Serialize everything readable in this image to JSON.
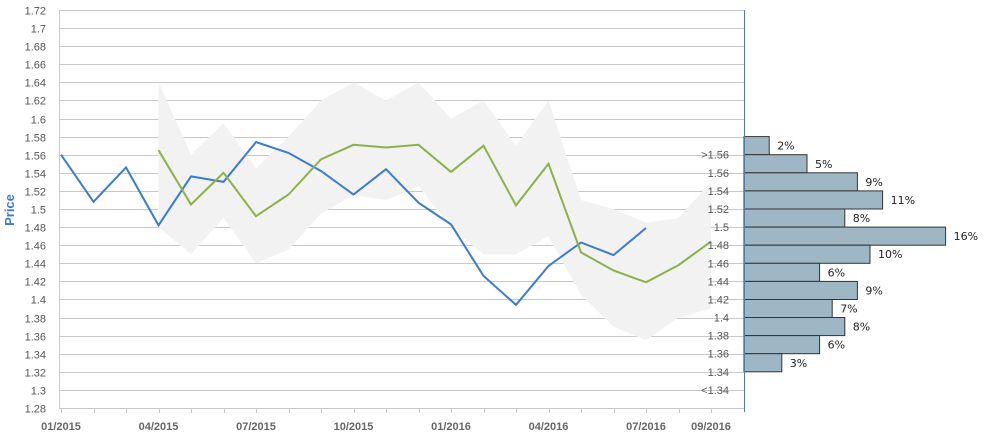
{
  "chart_data": {
    "type": "line",
    "ylabel": "Price",
    "ylim": [
      1.28,
      1.72
    ],
    "yticks": [
      "1.28",
      "1.3",
      "1.32",
      "1.34",
      "1.36",
      "1.38",
      "1.4",
      "1.42",
      "1.44",
      "1.46",
      "1.48",
      "1.5",
      "1.52",
      "1.54",
      "1.56",
      "1.58",
      "1.6",
      "1.62",
      "1.64",
      "1.66",
      "1.68",
      "1.7",
      "1.72"
    ],
    "xlim": [
      "2015-01",
      "2016-09"
    ],
    "xticks": [
      "01/2015",
      "04/2015",
      "07/2015",
      "10/2015",
      "01/2016",
      "04/2016",
      "07/2016",
      "09/2016"
    ],
    "grid": true,
    "colors": {
      "actual": "#3a7bd5",
      "forecast": "#8db04a",
      "band": "#f2f2f2",
      "hist_fill": "#9fb6c4",
      "hist_stroke": "#333333"
    },
    "band": {
      "x": [
        "2015-04",
        "2015-05",
        "2015-06",
        "2015-07",
        "2015-08",
        "2015-09",
        "2015-10",
        "2015-11",
        "2015-12",
        "2016-01",
        "2016-02",
        "2016-03",
        "2016-04",
        "2016-05",
        "2016-06",
        "2016-07",
        "2016-08",
        "2016-09"
      ],
      "upper": [
        1.64,
        1.56,
        1.595,
        1.545,
        1.58,
        1.62,
        1.64,
        1.62,
        1.64,
        1.6,
        1.62,
        1.57,
        1.62,
        1.51,
        1.5,
        1.485,
        1.49,
        1.53
      ],
      "lower": [
        1.48,
        1.45,
        1.49,
        1.44,
        1.455,
        1.495,
        1.515,
        1.51,
        1.525,
        1.48,
        1.45,
        1.45,
        1.47,
        1.405,
        1.37,
        1.355,
        1.38,
        1.39
      ]
    },
    "series": [
      {
        "x": [
          "2015-01",
          "2015-02",
          "2015-03",
          "2015-04",
          "2015-05",
          "2015-06",
          "2015-07",
          "2015-08",
          "2015-09",
          "2015-10",
          "2015-11",
          "2015-12",
          "2016-01",
          "2016-02",
          "2016-03",
          "2016-04",
          "2016-05",
          "2016-06",
          "2016-07"
        ],
        "y": [
          1.56,
          1.508,
          1.546,
          1.482,
          1.536,
          1.53,
          1.574,
          1.562,
          1.542,
          1.516,
          1.544,
          1.507,
          1.483,
          1.426,
          1.394,
          1.437,
          1.463,
          1.449,
          1.479
        ]
      },
      {
        "x": [
          "2015-04",
          "2015-05",
          "2015-06",
          "2015-07",
          "2015-08",
          "2015-09",
          "2015-10",
          "2015-11",
          "2015-12",
          "2016-01",
          "2016-02",
          "2016-03",
          "2016-04",
          "2016-05",
          "2016-06",
          "2016-07",
          "2016-08",
          "2016-09"
        ],
        "y": [
          1.565,
          1.505,
          1.54,
          1.492,
          1.516,
          1.555,
          1.571,
          1.568,
          1.571,
          1.541,
          1.57,
          1.504,
          1.55,
          1.452,
          1.432,
          1.419,
          1.438,
          1.464
        ]
      }
    ],
    "histogram": {
      "bins": [
        {
          "label": ">1.56",
          "percent": 2
        },
        {
          "label": "1.56",
          "percent": 5
        },
        {
          "label": "1.54",
          "percent": 9
        },
        {
          "label": "1.52",
          "percent": 11
        },
        {
          "label": "1.5",
          "percent": 8
        },
        {
          "label": "1.48",
          "percent": 16
        },
        {
          "label": "1.46",
          "percent": 10
        },
        {
          "label": "1.44",
          "percent": 6
        },
        {
          "label": "1.42",
          "percent": 9
        },
        {
          "label": "1.4",
          "percent": 7
        },
        {
          "label": "1.38",
          "percent": 8
        },
        {
          "label": "1.36",
          "percent": 6
        },
        {
          "label": "1.34",
          "percent": 3
        },
        {
          "label": "<1.34",
          "percent": null
        }
      ]
    }
  }
}
